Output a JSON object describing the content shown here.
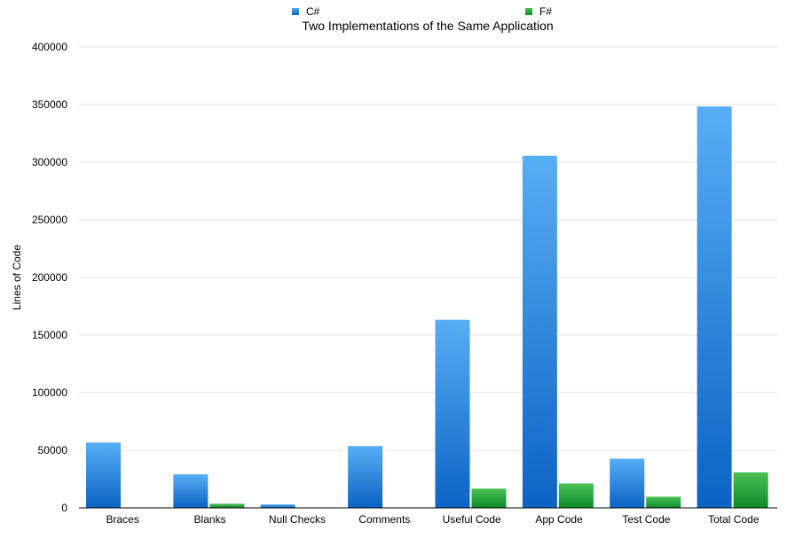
{
  "chart_data": {
    "type": "bar",
    "title": "Two Implementations of the Same Application",
    "xlabel": "",
    "ylabel": "Lines of Code",
    "categories": [
      "Braces",
      "Blanks",
      "Null Checks",
      "Comments",
      "Useful Code",
      "App Code",
      "Test Code",
      "Total Code"
    ],
    "series": [
      {
        "name": "C#",
        "color": "#2f8ce0",
        "color_top": "#56aef5",
        "color_bottom": "#0b63c4",
        "values": [
          56700,
          29100,
          3000,
          53700,
          163300,
          305600,
          42700,
          348400
        ]
      },
      {
        "name": "F#",
        "color": "#2faa3c",
        "color_top": "#4ac155",
        "color_bottom": "#0f8a2a",
        "values": [
          0,
          3600,
          0,
          0,
          16700,
          21200,
          9700,
          30800
        ]
      }
    ],
    "ylim": [
      0,
      400000
    ],
    "yticks": [
      "0",
      "50000",
      "100000",
      "150000",
      "200000",
      "250000",
      "300000",
      "350000",
      "400000"
    ],
    "grid": true,
    "legend_position": "top"
  }
}
